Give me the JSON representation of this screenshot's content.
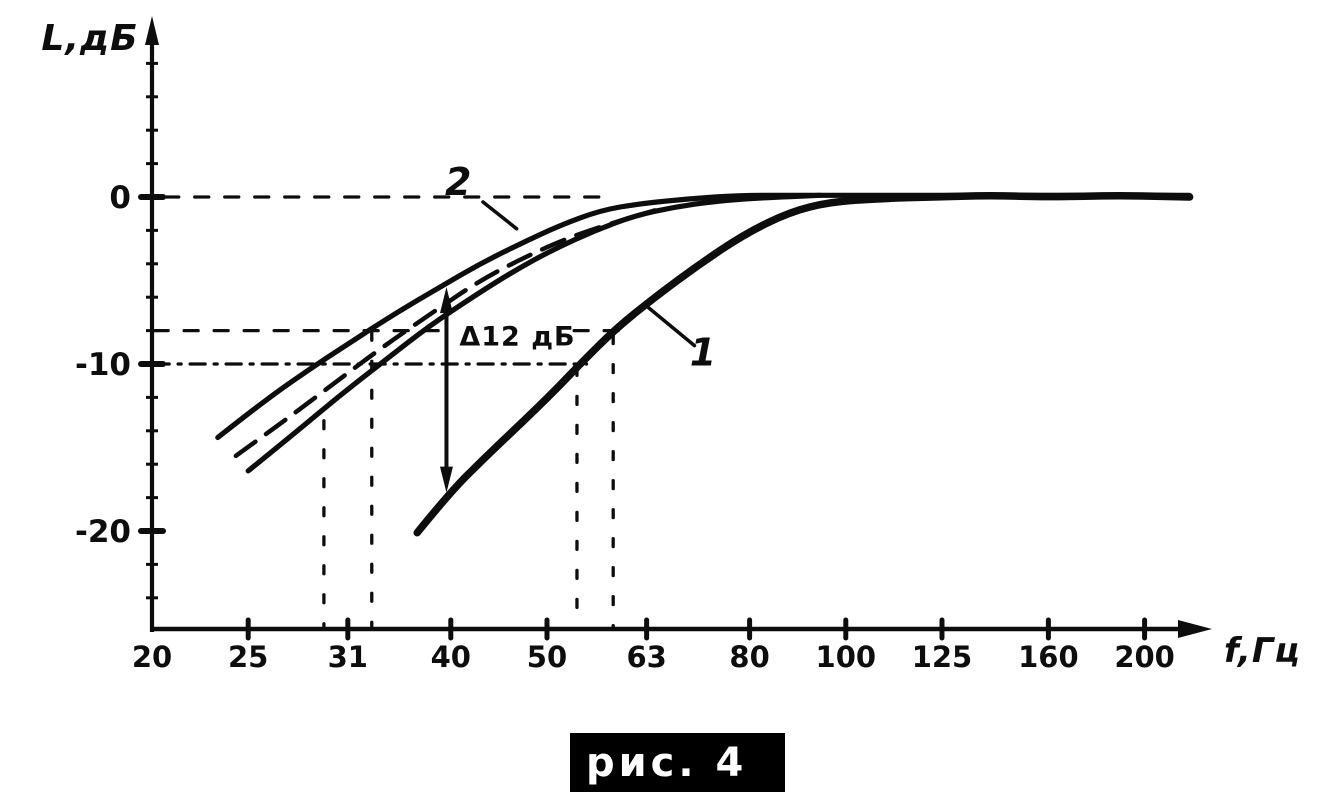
{
  "figure": {
    "caption": "рис. 4",
    "background": "#ffffff",
    "ink_color": "#0d0d0d"
  },
  "chart_data": {
    "type": "line",
    "x_scale": "log",
    "xlabel": "f,Гц",
    "ylabel": "L,дБ",
    "grid": "off",
    "x_axis_range_hz": [
      20,
      225
    ],
    "y_axis_range_db": [
      -26,
      10
    ],
    "x_ticks": [
      {
        "f": 20,
        "label": "20",
        "mark": false
      },
      {
        "f": 25,
        "label": "25"
      },
      {
        "f": 31.5,
        "label": "31"
      },
      {
        "f": 40,
        "label": "40"
      },
      {
        "f": 50,
        "label": "50"
      },
      {
        "f": 63,
        "label": "63"
      },
      {
        "f": 80,
        "label": "80"
      },
      {
        "f": 100,
        "label": "100"
      },
      {
        "f": 125,
        "label": "125"
      },
      {
        "f": 160,
        "label": "160"
      },
      {
        "f": 200,
        "label": "200"
      }
    ],
    "y_major_ticks": [
      {
        "dB": 0,
        "label": "0"
      },
      {
        "dB": -10,
        "label": "-10"
      },
      {
        "dB": -20,
        "label": "-20"
      }
    ],
    "y_minor_tick_db_step": 2,
    "y_tick_range": [
      -24,
      8
    ],
    "series": [
      {
        "name": "curve-1",
        "label": "1",
        "style": "solid",
        "stroke_px": 7.5,
        "points": [
          [
            37,
            -20.1
          ],
          [
            39.9,
            -17.7
          ],
          [
            43.3,
            -15.6
          ],
          [
            47,
            -13.6
          ],
          [
            50.9,
            -11.6
          ],
          [
            54,
            -10
          ],
          [
            58.6,
            -7.9
          ],
          [
            64.2,
            -6
          ],
          [
            71.3,
            -4
          ],
          [
            79.2,
            -2.2
          ],
          [
            87.8,
            -0.9
          ],
          [
            96.4,
            -0.3
          ],
          [
            108,
            -0.1
          ],
          [
            122,
            0
          ],
          [
            140,
            0.1
          ],
          [
            160,
            0
          ],
          [
            189,
            0.1
          ],
          [
            222,
            0
          ]
        ]
      },
      {
        "name": "curve-2-upper",
        "label": "2",
        "style": "solid",
        "stroke_px": 5.2,
        "points": [
          [
            23.3,
            -14.4
          ],
          [
            25.7,
            -12.4
          ],
          [
            28.5,
            -10.5
          ],
          [
            31.7,
            -8.7
          ],
          [
            35.1,
            -7
          ],
          [
            39,
            -5.4
          ],
          [
            42.8,
            -4
          ],
          [
            47,
            -2.8
          ],
          [
            51.5,
            -1.7
          ],
          [
            56.6,
            -0.8
          ],
          [
            62,
            -0.4
          ],
          [
            69.7,
            -0.1
          ],
          [
            78.2,
            0.1
          ],
          [
            90,
            0.1
          ],
          [
            108,
            0.1
          ],
          [
            130,
            0.1
          ],
          [
            157,
            0.1
          ],
          [
            189,
            0.1
          ],
          [
            222,
            0.1
          ]
        ]
      },
      {
        "name": "curve-2-lower",
        "label": "2",
        "style": "solid",
        "stroke_px": 5.2,
        "points": [
          [
            25,
            -16.4
          ],
          [
            27.9,
            -14.1
          ],
          [
            30.9,
            -11.9
          ],
          [
            34.3,
            -9.8
          ],
          [
            38.1,
            -7.7
          ],
          [
            42.3,
            -5.9
          ],
          [
            46.4,
            -4.4
          ],
          [
            50.9,
            -3.1
          ],
          [
            55.9,
            -2
          ],
          [
            61.4,
            -1.1
          ],
          [
            67.3,
            -0.6
          ],
          [
            73.9,
            -0.25
          ],
          [
            82,
            -0.05
          ],
          [
            94.2,
            0.1
          ]
        ]
      },
      {
        "name": "curve-2-dashed",
        "label": "2",
        "style": "dashed",
        "stroke_px": 4.5,
        "points": [
          [
            24.3,
            -15.5
          ],
          [
            27.2,
            -13.4
          ],
          [
            30.6,
            -11.1
          ],
          [
            34.3,
            -8.9
          ],
          [
            38.6,
            -6.8
          ],
          [
            42.8,
            -5
          ],
          [
            47.5,
            -3.6
          ],
          [
            52.7,
            -2.4
          ],
          [
            58.6,
            -1.5
          ],
          [
            64.2,
            -0.8
          ]
        ]
      }
    ],
    "reference_lines": [
      {
        "name": "zero-db-line",
        "orientation": "h",
        "dB": 0,
        "f_from": 20.6,
        "f_to": 57.5,
        "pattern": "dash"
      },
      {
        "name": "minus-8-db-line",
        "orientation": "h",
        "dB": -8,
        "f_from": 20.1,
        "f_to": 59.5,
        "pattern": "dash"
      },
      {
        "name": "minus-10-db-line",
        "orientation": "h",
        "dB": -10,
        "f_from": 20.1,
        "f_to": 54.8,
        "pattern": "dashdot"
      },
      {
        "name": "cutoff-v-left-1",
        "orientation": "v",
        "f": 29.8,
        "dB_from": -13.4,
        "dB_to": -25.8,
        "pattern": "dot"
      },
      {
        "name": "cutoff-v-left-2",
        "orientation": "v",
        "f": 33.3,
        "dB_from": -8.1,
        "dB_to": -25.8,
        "pattern": "dot"
      },
      {
        "name": "cutoff-v-right-1",
        "orientation": "v",
        "f": 53.6,
        "dB_from": -10.2,
        "dB_to": -25.8,
        "pattern": "dot"
      },
      {
        "name": "cutoff-v-right-2",
        "orientation": "v",
        "f": 58.3,
        "dB_from": -8.3,
        "dB_to": -25.8,
        "pattern": "dot"
      }
    ],
    "annotations": {
      "delta_arrow": {
        "f": 39.6,
        "dB_from": -5.4,
        "dB_to": -17.7,
        "label": "Δ12 дБ",
        "label_f": 40.8,
        "label_dB": -8.9
      },
      "series_labels": [
        {
          "text": "2",
          "f": 40.7,
          "dB": 0.9,
          "leader_f": [
            43.1,
            46.6
          ],
          "leader_dB": [
            -0.3,
            -1.9
          ]
        },
        {
          "text": "1",
          "f": 71.8,
          "dB": -9.3,
          "leader_f": [
            63.2,
            70.4
          ],
          "leader_dB": [
            -6.6,
            -8.9
          ]
        }
      ]
    }
  }
}
